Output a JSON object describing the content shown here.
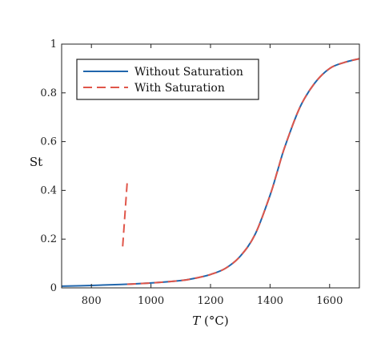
{
  "chart_data": {
    "type": "line",
    "title": "",
    "xlabel": "T (°C)",
    "xlabel_var": "T",
    "xlabel_unit": " (°C)",
    "ylabel": "St",
    "xlim": [
      700,
      1700
    ],
    "ylim": [
      0,
      1
    ],
    "xticks": [
      800,
      1000,
      1200,
      1400,
      1600
    ],
    "yticks": [
      0,
      0.2,
      0.4,
      0.6,
      0.8,
      1
    ],
    "xtick_labels": [
      "800",
      "1000",
      "1200",
      "1400",
      "1600"
    ],
    "ytick_labels": [
      "0",
      "0.2",
      "0.4",
      "0.6",
      "0.8",
      "1"
    ],
    "grid": false,
    "legend_position": "top-left",
    "series": [
      {
        "name": "Without Saturation",
        "color": "#2166ac",
        "style": "solid",
        "x": [
          700,
          800,
          900,
          1000,
          1100,
          1150,
          1200,
          1250,
          1300,
          1350,
          1400,
          1425,
          1450,
          1500,
          1550,
          1600,
          1650,
          1700
        ],
        "y": [
          0.007,
          0.01,
          0.014,
          0.02,
          0.03,
          0.04,
          0.055,
          0.08,
          0.13,
          0.22,
          0.38,
          0.48,
          0.58,
          0.74,
          0.84,
          0.9,
          0.925,
          0.94
        ]
      },
      {
        "name": "With Saturation",
        "color": "#e0564a",
        "style": "dashed",
        "segments": [
          {
            "x": [
              905,
              920
            ],
            "y": [
              0.17,
              0.43
            ]
          },
          {
            "x": [
              920,
              1000,
              1100,
              1150,
              1200,
              1250,
              1300,
              1350,
              1400,
              1425,
              1450,
              1500,
              1550,
              1600,
              1650,
              1700
            ],
            "y": [
              0.015,
              0.02,
              0.03,
              0.04,
              0.055,
              0.08,
              0.13,
              0.22,
              0.38,
              0.48,
              0.58,
              0.74,
              0.84,
              0.9,
              0.925,
              0.94
            ]
          }
        ]
      }
    ]
  }
}
